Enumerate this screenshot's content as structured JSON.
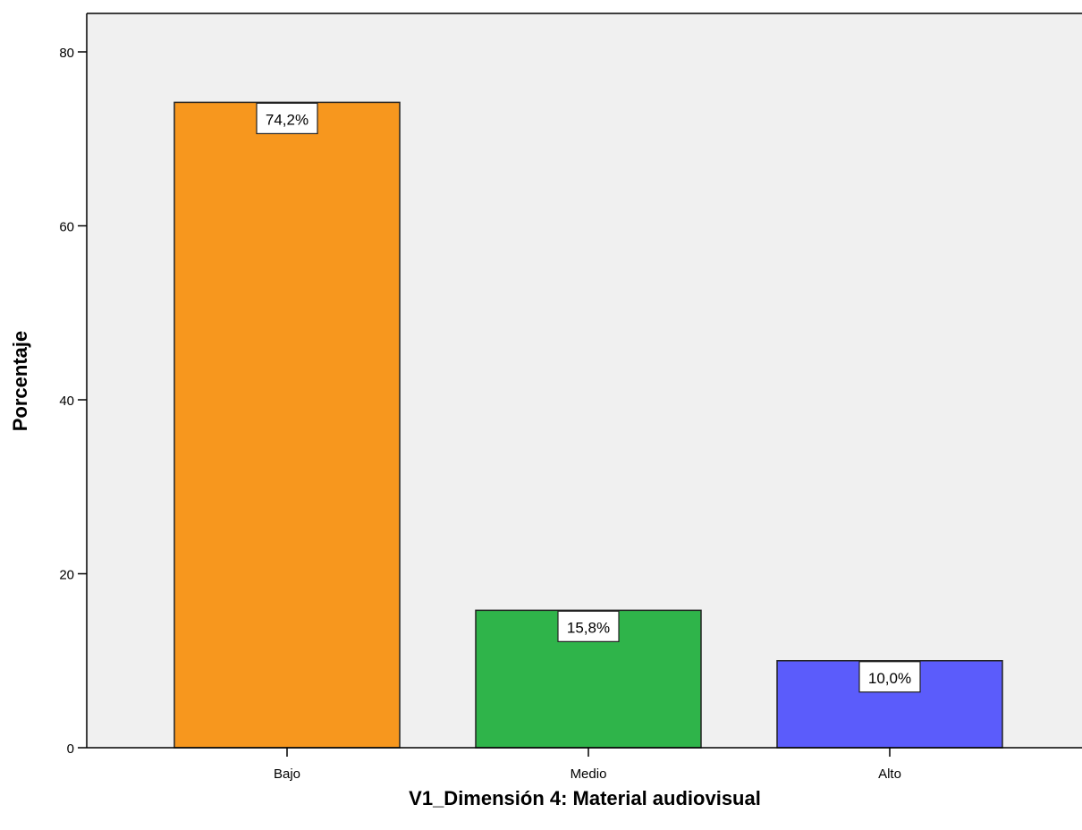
{
  "chart_data": {
    "type": "bar",
    "title": "",
    "xlabel": "V1_Dimensión 4: Material audiovisual",
    "ylabel": "Porcentaje",
    "categories": [
      "Bajo",
      "Medio",
      "Alto"
    ],
    "values": [
      74.2,
      15.8,
      10.0
    ],
    "data_labels": [
      "74,2%",
      "15,8%",
      "10,0%"
    ],
    "colors": [
      "#f7971e",
      "#2fb44a",
      "#5b5cfb"
    ],
    "ylim": [
      0,
      80
    ],
    "yticks": [
      0,
      20,
      40,
      60,
      80
    ],
    "plot_background": "#f0f0f0",
    "grid": false,
    "legend": "none"
  }
}
